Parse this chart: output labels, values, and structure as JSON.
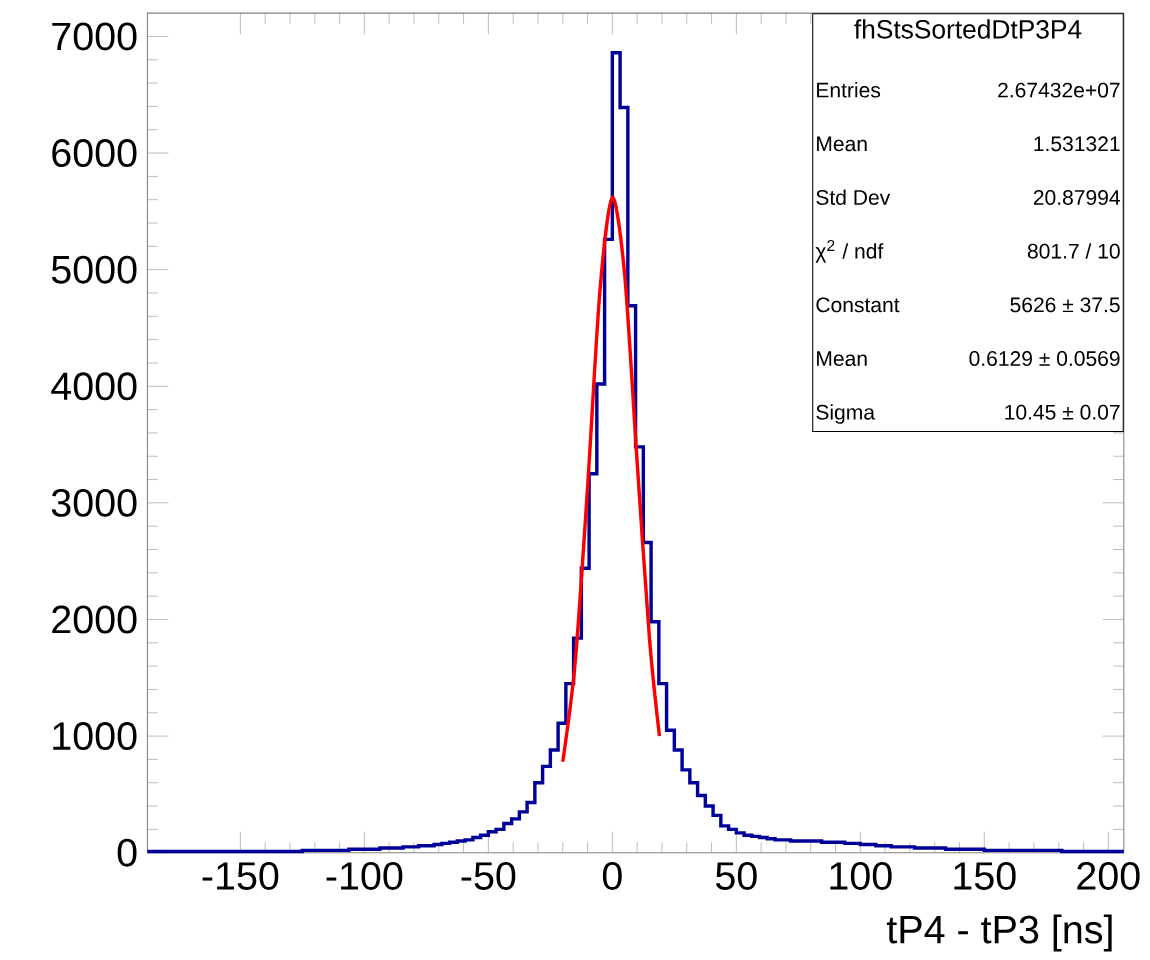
{
  "chart_data": {
    "type": "histogram",
    "xlabel": "tP4 - tP3 [ns]",
    "bins": [
      -187.5,
      -184.375,
      -181.25,
      -178.125,
      -175,
      -171.875,
      -168.75,
      -165.625,
      -162.5,
      -159.375,
      -156.25,
      -153.125,
      -150,
      -146.875,
      -143.75,
      -140.625,
      -137.5,
      -134.375,
      -131.25,
      -128.125,
      -125,
      -121.875,
      -118.75,
      -115.625,
      -112.5,
      -109.375,
      -106.25,
      -103.125,
      -100,
      -96.875,
      -93.75,
      -90.625,
      -87.5,
      -84.375,
      -81.25,
      -78.125,
      -75,
      -71.875,
      -68.75,
      -65.625,
      -62.5,
      -59.375,
      -56.25,
      -53.125,
      -50,
      -46.875,
      -43.75,
      -40.625,
      -37.5,
      -34.375,
      -31.25,
      -28.125,
      -25,
      -21.875,
      -18.75,
      -15.625,
      -12.5,
      -9.375,
      -6.25,
      -3.125,
      0,
      3.125,
      6.25,
      9.375,
      12.5,
      15.625,
      18.75,
      21.875,
      25,
      28.125,
      31.25,
      34.375,
      37.5,
      40.625,
      43.75,
      46.875,
      50,
      53.125,
      56.25,
      59.375,
      62.5,
      65.625,
      68.75,
      71.875,
      75,
      78.125,
      81.25,
      84.375,
      87.5,
      90.625,
      93.75,
      96.875,
      100,
      103.125,
      106.25,
      109.375,
      112.5,
      115.625,
      118.75,
      121.875,
      125,
      128.125,
      131.25,
      134.375,
      137.5,
      140.625,
      143.75,
      146.875,
      150,
      153.125,
      156.25,
      159.375,
      162.5,
      165.625,
      168.75,
      171.875,
      175,
      178.125,
      181.25,
      184.375,
      187.5,
      190.625,
      193.75,
      196.875,
      200,
      203.125,
      206.25
    ],
    "values": [
      10,
      10,
      10,
      10,
      10,
      10,
      10,
      10,
      10,
      10,
      10,
      10,
      10,
      10,
      10,
      10,
      10,
      10,
      10,
      10,
      20,
      20,
      20,
      20,
      20,
      20,
      30,
      30,
      30,
      30,
      40,
      40,
      40,
      50,
      50,
      60,
      60,
      70,
      80,
      90,
      100,
      110,
      130,
      150,
      180,
      200,
      250,
      290,
      350,
      430,
      600,
      740,
      880,
      1110,
      1450,
      1840,
      2440,
      3250,
      4020,
      5260,
      6860,
      6390,
      4690,
      3480,
      2660,
      1980,
      1450,
      1050,
      880,
      710,
      600,
      490,
      400,
      320,
      230,
      200,
      170,
      150,
      140,
      130,
      120,
      110,
      110,
      100,
      100,
      100,
      100,
      90,
      90,
      90,
      80,
      80,
      70,
      70,
      60,
      60,
      50,
      50,
      50,
      40,
      40,
      40,
      40,
      30,
      30,
      30,
      30,
      30,
      20,
      20,
      20,
      20,
      20,
      20,
      20,
      20,
      20,
      20,
      10,
      10,
      10,
      10,
      10,
      10,
      10,
      10
    ],
    "color": "#000099",
    "series": [
      {
        "type": "line",
        "color": "#ff0000",
        "x": [
          -20,
          -15,
          -10,
          -5,
          0,
          5,
          10,
          15,
          19
        ],
        "values": [
          780,
          1630,
          3130,
          4820,
          5620,
          4950,
          3350,
          1830,
          1000
        ]
      }
    ],
    "xlim": [
      -187.5,
      206.25
    ],
    "xticks": [
      -150,
      -100,
      -50,
      0,
      50,
      100,
      150,
      200
    ],
    "ylim": [
      0,
      7200
    ],
    "yticks": [
      0,
      1000,
      2000,
      3000,
      4000,
      5000,
      6000,
      7000
    ],
    "annotations": [
      "fhStsSortedDtP3P4",
      "Entries",
      "2.67432e+07",
      "Mean",
      "1.531321",
      "Std Dev",
      "20.87994",
      "χ$^{2}$ / ndf",
      "801.7 / 10",
      "Constant",
      "5626 ± 37.5",
      "Mean",
      "0.6129 ± 0.0569",
      "Sigma",
      "10.45 ± 0.07"
    ],
    "grid": false
  }
}
